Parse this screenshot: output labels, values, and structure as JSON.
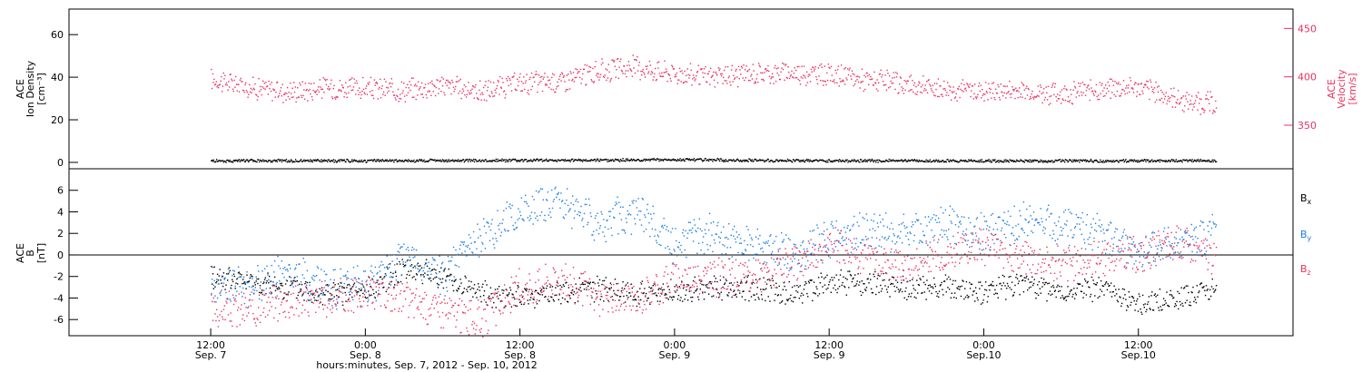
{
  "chart_data": [
    {
      "type": "scatter",
      "panel": "top",
      "left_axis": {
        "label_lines": [
          "ACE",
          "Ion Density",
          "[cm⁻³]"
        ],
        "range": [
          -3,
          72
        ],
        "ticks": [
          0,
          20,
          40,
          60
        ],
        "tick_labels": [
          "0",
          "20",
          "40",
          "60"
        ],
        "color": "#000000"
      },
      "right_axis": {
        "label_lines": [
          "ACE",
          "Velocity",
          "[km/s]"
        ],
        "range": [
          305,
          470
        ],
        "ticks": [
          350,
          400,
          450
        ],
        "tick_labels": [
          "350",
          "400",
          "450"
        ],
        "color": "#e8345f"
      },
      "series": [
        {
          "axis": "right",
          "color": "#e8345f",
          "x": [
            0,
            0.125,
            0.25,
            0.375,
            0.5,
            0.625,
            0.75,
            0.875,
            1.0,
            1.125,
            1.25,
            1.375,
            1.5,
            1.625,
            1.75,
            1.875,
            2.0,
            2.125,
            2.25,
            2.375,
            2.5,
            2.625,
            2.75,
            2.875,
            3.0,
            3.125,
            3.25
          ],
          "values": [
            398,
            390,
            385,
            390,
            388,
            387,
            392,
            385,
            394,
            396,
            406,
            411,
            404,
            400,
            404,
            405,
            403,
            397,
            392,
            388,
            386,
            386,
            383,
            388,
            390,
            377,
            372
          ]
        },
        {
          "axis": "left",
          "color": "#000000",
          "x": [
            0,
            0.5,
            1.0,
            1.5,
            2.0,
            2.5,
            3.0,
            3.25
          ],
          "values": [
            1,
            1,
            1.2,
            1.5,
            1,
            1,
            1,
            1
          ]
        }
      ]
    },
    {
      "type": "scatter",
      "panel": "bottom",
      "left_axis": {
        "label_lines": [
          "ACE",
          "B",
          "[nT]"
        ],
        "range": [
          -7.5,
          8
        ],
        "ticks": [
          -6,
          -4,
          -2,
          0,
          2,
          4,
          6
        ],
        "tick_labels": [
          "-6",
          "-4",
          "-2",
          "0",
          "2",
          "4",
          "6"
        ],
        "color": "#000000"
      },
      "legend": [
        {
          "label": "B",
          "sub": "x",
          "color": "#000000"
        },
        {
          "label": "B",
          "sub": "y",
          "color": "#1f7fe0"
        },
        {
          "label": "B",
          "sub": "z",
          "color": "#e8345f"
        }
      ],
      "series": [
        {
          "name": "Bx",
          "color": "#000000",
          "x": [
            0,
            0.125,
            0.25,
            0.375,
            0.5,
            0.625,
            0.75,
            0.875,
            1.0,
            1.125,
            1.25,
            1.375,
            1.5,
            1.625,
            1.75,
            1.875,
            2.0,
            2.125,
            2.25,
            2.375,
            2.5,
            2.625,
            2.75,
            2.875,
            3.0,
            3.125,
            3.25
          ],
          "values": [
            -2,
            -2.5,
            -3,
            -3.5,
            -3.5,
            -1,
            -2,
            -3.5,
            -4,
            -3.5,
            -3,
            -3.5,
            -3.5,
            -3,
            -3,
            -3.5,
            -2.5,
            -2.5,
            -3,
            -3,
            -3.5,
            -2.5,
            -3.5,
            -3,
            -4.5,
            -4,
            -3
          ]
        },
        {
          "name": "By",
          "color": "#1f7fe0",
          "x": [
            0,
            0.125,
            0.25,
            0.375,
            0.5,
            0.625,
            0.75,
            0.875,
            1.0,
            1.125,
            1.25,
            1.375,
            1.5,
            1.625,
            1.75,
            1.875,
            2.0,
            2.125,
            2.25,
            2.375,
            2.5,
            2.625,
            2.75,
            2.875,
            3.0,
            3.125,
            3.25
          ],
          "values": [
            -2.5,
            -3,
            -1.5,
            -3,
            -3,
            0,
            -2,
            2,
            4,
            5,
            3,
            4,
            1,
            2,
            1,
            0,
            1.5,
            2.5,
            2,
            3,
            2,
            3,
            3,
            2,
            0,
            1,
            2
          ]
        },
        {
          "name": "Bz",
          "color": "#e8345f",
          "x": [
            0,
            0.125,
            0.25,
            0.375,
            0.5,
            0.625,
            0.75,
            0.875,
            1.0,
            1.125,
            1.25,
            1.375,
            1.5,
            1.625,
            1.75,
            1.875,
            2.0,
            2.125,
            2.25,
            2.375,
            2.5,
            2.625,
            2.75,
            2.875,
            3.0,
            3.125,
            3.25
          ],
          "values": [
            -5,
            -5,
            -4,
            -4,
            -3.5,
            -4,
            -5,
            -6,
            -3,
            -2,
            -4,
            -4,
            -2,
            -2,
            -2,
            -1,
            1,
            0,
            -1,
            0,
            1,
            0,
            -1,
            0,
            0,
            1,
            0
          ]
        }
      ]
    }
  ],
  "x_axis": {
    "range": [
      -0.4583,
      3.5
    ],
    "ticks": [
      0,
      0.5,
      1,
      1.5,
      2,
      2.5,
      3,
      3.5
    ],
    "tick_hours": [
      "12:00",
      "0:00",
      "12:00",
      "0:00",
      "12:00",
      "0:00",
      "12:00"
    ],
    "tick_dates": [
      "Sep. 7",
      "Sep. 8",
      "Sep. 8",
      "Sep. 9",
      "Sep. 9",
      "Sep.10",
      "Sep.10"
    ],
    "tick_positions": [
      0,
      0.5,
      1,
      1.5,
      2,
      2.5,
      3
    ],
    "title": "hours:minutes, Sep.  7, 2012 - Sep. 10, 2012"
  }
}
